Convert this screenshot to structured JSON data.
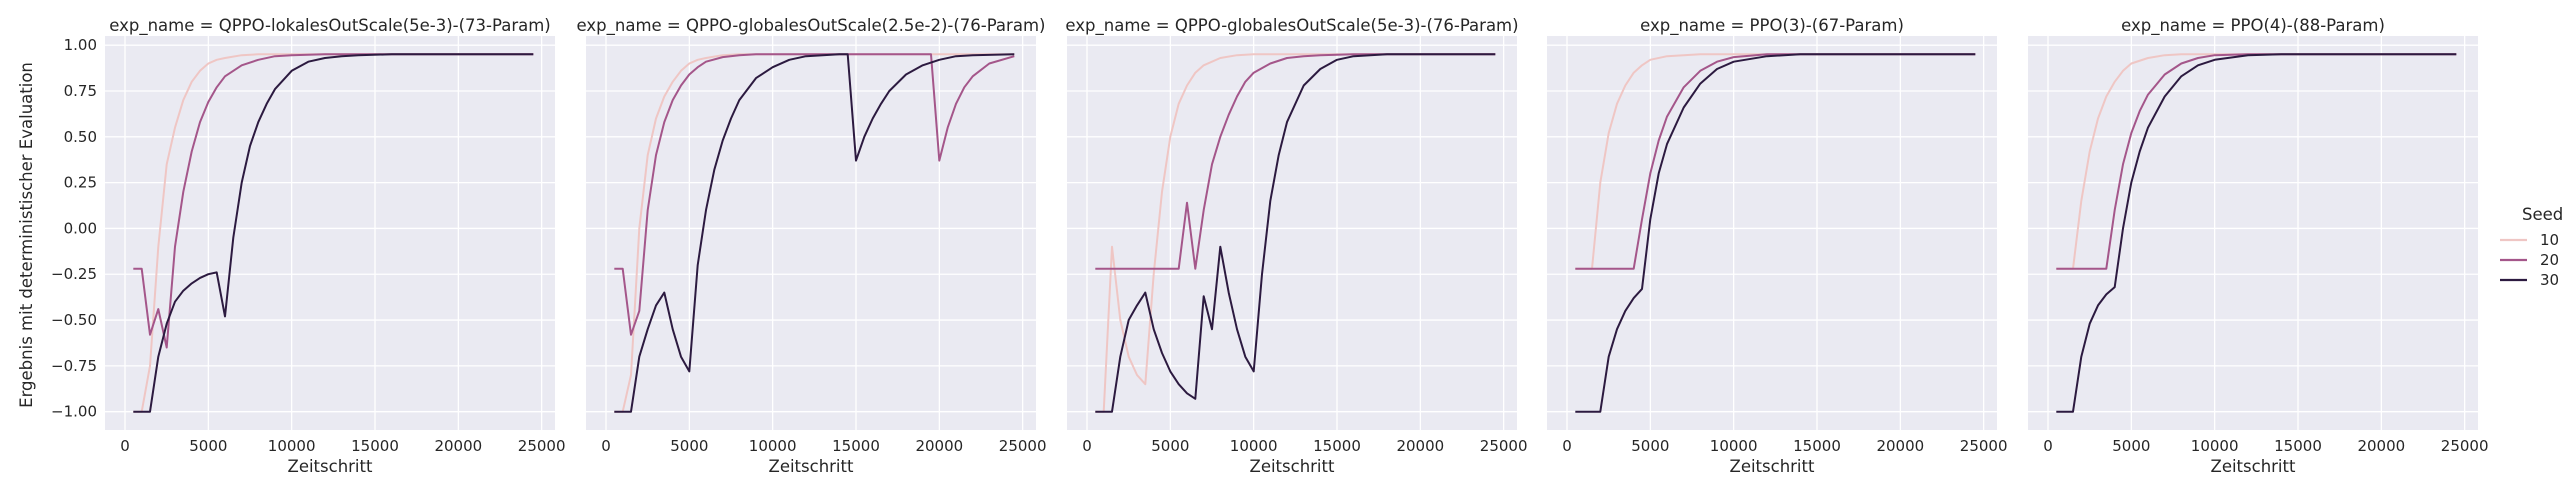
{
  "chart_data": {
    "type": "line",
    "figure": {
      "ylabel": "Ergebnis mit deterministischer Evaluation",
      "xlim": [
        -1200,
        25800
      ],
      "ylim": [
        -1.1,
        1.05
      ],
      "xticks": [
        0,
        5000,
        10000,
        15000,
        20000,
        25000
      ],
      "yticks": [
        -1.0,
        -0.75,
        -0.5,
        -0.25,
        0.0,
        0.25,
        0.5,
        0.75,
        1.0
      ],
      "ytick_labels": [
        "−1.00",
        "−0.75",
        "−0.50",
        "−0.25",
        "0.00",
        "0.25",
        "0.50",
        "0.75",
        "1.00"
      ],
      "grid": true,
      "background": "#eaeaf2",
      "grid_color": "#ffffff"
    },
    "legend": {
      "title": "Seed",
      "placement": "right",
      "entries": [
        {
          "label": "10",
          "color": "#efc6c4"
        },
        {
          "label": "20",
          "color": "#a4568a"
        },
        {
          "label": "30",
          "color": "#2c1a40"
        }
      ]
    },
    "panels": [
      {
        "title": "exp_name = QPPO-lokalesOutScale(5e-3)-(73-Param)",
        "xlabel": "Zeitschritt",
        "series": [
          {
            "name": "10",
            "color": "#efc6c4",
            "x": [
              500,
              1000,
              1500,
              2000,
              2500,
              3000,
              3500,
              4000,
              4500,
              5000,
              5500,
              6000,
              7000,
              8000,
              9000,
              10000,
              12000,
              14000,
              16000,
              18000,
              20000,
              22000,
              24500
            ],
            "y": [
              -1.0,
              -1.0,
              -0.75,
              -0.1,
              0.35,
              0.55,
              0.7,
              0.8,
              0.86,
              0.9,
              0.92,
              0.93,
              0.945,
              0.95,
              0.95,
              0.95,
              0.95,
              0.95,
              0.95,
              0.95,
              0.95,
              0.95,
              0.95
            ]
          },
          {
            "name": "20",
            "color": "#a4568a",
            "x": [
              500,
              1000,
              1500,
              2000,
              2500,
              3000,
              3500,
              4000,
              4500,
              5000,
              5500,
              6000,
              7000,
              8000,
              9000,
              10000,
              12000,
              14000,
              16000,
              18000,
              20000,
              22000,
              24500
            ],
            "y": [
              -0.22,
              -0.22,
              -0.58,
              -0.44,
              -0.65,
              -0.1,
              0.2,
              0.42,
              0.58,
              0.69,
              0.77,
              0.83,
              0.89,
              0.92,
              0.94,
              0.945,
              0.95,
              0.95,
              0.95,
              0.95,
              0.95,
              0.95,
              0.95
            ]
          },
          {
            "name": "30",
            "color": "#2c1a40",
            "x": [
              500,
              1000,
              1500,
              2000,
              2500,
              3000,
              3500,
              4000,
              4500,
              5000,
              5500,
              6000,
              6500,
              7000,
              7500,
              8000,
              8500,
              9000,
              10000,
              11000,
              12000,
              13000,
              14000,
              16000,
              18000,
              20000,
              22000,
              24500
            ],
            "y": [
              -1.0,
              -1.0,
              -1.0,
              -0.7,
              -0.52,
              -0.4,
              -0.34,
              -0.3,
              -0.27,
              -0.25,
              -0.24,
              -0.48,
              -0.05,
              0.25,
              0.45,
              0.58,
              0.68,
              0.76,
              0.86,
              0.91,
              0.93,
              0.94,
              0.945,
              0.95,
              0.95,
              0.95,
              0.95,
              0.95
            ]
          }
        ]
      },
      {
        "title": "exp_name = QPPO-globalesOutScale(2.5e-2)-(76-Param)",
        "xlabel": "Zeitschritt",
        "series": [
          {
            "name": "10",
            "color": "#efc6c4",
            "x": [
              500,
              1000,
              1500,
              2000,
              2500,
              3000,
              3500,
              4000,
              4500,
              5000,
              5500,
              6000,
              7000,
              8000,
              9000,
              10000,
              12000,
              14000,
              16000,
              18000,
              20000,
              22000,
              24500
            ],
            "y": [
              -1.0,
              -1.0,
              -0.8,
              0.0,
              0.4,
              0.6,
              0.72,
              0.8,
              0.86,
              0.9,
              0.92,
              0.93,
              0.945,
              0.95,
              0.95,
              0.95,
              0.95,
              0.95,
              0.95,
              0.95,
              0.95,
              0.95,
              0.95
            ]
          },
          {
            "name": "20",
            "color": "#a4568a",
            "x": [
              500,
              1000,
              1500,
              2000,
              2500,
              3000,
              3500,
              4000,
              4500,
              5000,
              5500,
              6000,
              7000,
              8000,
              9000,
              10000,
              12000,
              14000,
              16000,
              18000,
              19500,
              20000,
              20500,
              21000,
              21500,
              22000,
              23000,
              24500
            ],
            "y": [
              -0.22,
              -0.22,
              -0.58,
              -0.45,
              0.1,
              0.4,
              0.58,
              0.7,
              0.78,
              0.84,
              0.88,
              0.91,
              0.935,
              0.945,
              0.95,
              0.95,
              0.95,
              0.95,
              0.95,
              0.95,
              0.95,
              0.37,
              0.55,
              0.68,
              0.77,
              0.83,
              0.9,
              0.94
            ]
          },
          {
            "name": "30",
            "color": "#2c1a40",
            "x": [
              500,
              1000,
              1500,
              2000,
              2500,
              3000,
              3500,
              4000,
              4500,
              5000,
              5500,
              6000,
              6500,
              7000,
              7500,
              8000,
              9000,
              10000,
              11000,
              12000,
              13000,
              14000,
              14500,
              15000,
              15500,
              16000,
              16500,
              17000,
              18000,
              19000,
              20000,
              21000,
              22000,
              24500
            ],
            "y": [
              -1.0,
              -1.0,
              -1.0,
              -0.7,
              -0.55,
              -0.42,
              -0.35,
              -0.55,
              -0.7,
              -0.78,
              -0.2,
              0.1,
              0.32,
              0.48,
              0.6,
              0.7,
              0.82,
              0.88,
              0.92,
              0.94,
              0.945,
              0.95,
              0.95,
              0.37,
              0.5,
              0.6,
              0.68,
              0.75,
              0.84,
              0.89,
              0.92,
              0.94,
              0.945,
              0.95
            ]
          }
        ]
      },
      {
        "title": "exp_name = QPPO-globalesOutScale(5e-3)-(76-Param)",
        "xlabel": "Zeitschritt",
        "series": [
          {
            "name": "10",
            "color": "#efc6c4",
            "x": [
              500,
              1000,
              1500,
              2000,
              2500,
              3000,
              3500,
              4000,
              4500,
              5000,
              5500,
              6000,
              6500,
              7000,
              8000,
              9000,
              10000,
              12000,
              14000,
              16000,
              18000,
              20000,
              22000,
              24500
            ],
            "y": [
              -1.0,
              -1.0,
              -0.1,
              -0.5,
              -0.7,
              -0.8,
              -0.85,
              -0.25,
              0.2,
              0.5,
              0.68,
              0.78,
              0.85,
              0.89,
              0.93,
              0.945,
              0.95,
              0.95,
              0.95,
              0.95,
              0.95,
              0.95,
              0.95,
              0.95
            ]
          },
          {
            "name": "20",
            "color": "#a4568a",
            "x": [
              500,
              1000,
              1500,
              2000,
              2500,
              3000,
              3500,
              4000,
              4500,
              5000,
              5500,
              6000,
              6500,
              7000,
              7500,
              8000,
              8500,
              9000,
              9500,
              10000,
              11000,
              12000,
              13000,
              14000,
              16000,
              18000,
              20000,
              22000,
              24500
            ],
            "y": [
              -0.22,
              -0.22,
              -0.22,
              -0.22,
              -0.22,
              -0.22,
              -0.22,
              -0.22,
              -0.22,
              -0.22,
              -0.22,
              0.14,
              -0.22,
              0.1,
              0.35,
              0.5,
              0.62,
              0.72,
              0.8,
              0.85,
              0.9,
              0.93,
              0.94,
              0.945,
              0.95,
              0.95,
              0.95,
              0.95,
              0.95
            ]
          },
          {
            "name": "30",
            "color": "#2c1a40",
            "x": [
              500,
              1000,
              1500,
              2000,
              2500,
              3000,
              3500,
              4000,
              4500,
              5000,
              5500,
              6000,
              6500,
              7000,
              7500,
              8000,
              8500,
              9000,
              9500,
              10000,
              10500,
              11000,
              11500,
              12000,
              13000,
              14000,
              15000,
              16000,
              18000,
              20000,
              22000,
              24500
            ],
            "y": [
              -1.0,
              -1.0,
              -1.0,
              -0.7,
              -0.5,
              -0.42,
              -0.35,
              -0.55,
              -0.68,
              -0.78,
              -0.85,
              -0.9,
              -0.93,
              -0.37,
              -0.55,
              -0.1,
              -0.35,
              -0.55,
              -0.7,
              -0.78,
              -0.25,
              0.15,
              0.4,
              0.58,
              0.78,
              0.87,
              0.92,
              0.94,
              0.95,
              0.95,
              0.95,
              0.95
            ]
          }
        ]
      },
      {
        "title": "exp_name = PPO(3)-(67-Param)",
        "xlabel": "Zeitschritt",
        "series": [
          {
            "name": "10",
            "color": "#efc6c4",
            "x": [
              500,
              1000,
              1500,
              2000,
              2500,
              3000,
              3500,
              4000,
              4500,
              5000,
              6000,
              7000,
              8000,
              9000,
              10000,
              12000,
              14000,
              16000,
              18000,
              20000,
              22000,
              24500
            ],
            "y": [
              -0.22,
              -0.22,
              -0.22,
              0.25,
              0.52,
              0.68,
              0.78,
              0.85,
              0.89,
              0.92,
              0.94,
              0.945,
              0.95,
              0.95,
              0.95,
              0.95,
              0.95,
              0.95,
              0.95,
              0.95,
              0.95,
              0.95
            ]
          },
          {
            "name": "20",
            "color": "#a4568a",
            "x": [
              500,
              1000,
              1500,
              2000,
              2500,
              3000,
              3500,
              4000,
              4500,
              5000,
              5500,
              6000,
              7000,
              8000,
              9000,
              10000,
              12000,
              14000,
              16000,
              18000,
              20000,
              22000,
              24500
            ],
            "y": [
              -0.22,
              -0.22,
              -0.22,
              -0.22,
              -0.22,
              -0.22,
              -0.22,
              -0.22,
              0.05,
              0.3,
              0.48,
              0.61,
              0.77,
              0.86,
              0.91,
              0.935,
              0.95,
              0.95,
              0.95,
              0.95,
              0.95,
              0.95,
              0.95
            ]
          },
          {
            "name": "30",
            "color": "#2c1a40",
            "x": [
              500,
              1000,
              1500,
              2000,
              2500,
              3000,
              3500,
              4000,
              4500,
              5000,
              5500,
              6000,
              7000,
              8000,
              9000,
              10000,
              12000,
              14000,
              16000,
              18000,
              20000,
              22000,
              24500
            ],
            "y": [
              -1.0,
              -1.0,
              -1.0,
              -1.0,
              -0.7,
              -0.55,
              -0.45,
              -0.38,
              -0.33,
              0.05,
              0.3,
              0.46,
              0.66,
              0.79,
              0.87,
              0.91,
              0.94,
              0.95,
              0.95,
              0.95,
              0.95,
              0.95,
              0.95
            ]
          }
        ]
      },
      {
        "title": "exp_name = PPO(4)-(88-Param)",
        "xlabel": "Zeitschritt",
        "series": [
          {
            "name": "10",
            "color": "#efc6c4",
            "x": [
              500,
              1000,
              1500,
              2000,
              2500,
              3000,
              3500,
              4000,
              4500,
              5000,
              6000,
              7000,
              8000,
              9000,
              10000,
              12000,
              14000,
              16000,
              18000,
              20000,
              22000,
              24500
            ],
            "y": [
              -0.22,
              -0.22,
              -0.22,
              0.15,
              0.42,
              0.6,
              0.72,
              0.8,
              0.86,
              0.9,
              0.93,
              0.945,
              0.95,
              0.95,
              0.95,
              0.95,
              0.95,
              0.95,
              0.95,
              0.95,
              0.95,
              0.95
            ]
          },
          {
            "name": "20",
            "color": "#a4568a",
            "x": [
              500,
              1000,
              1500,
              2000,
              2500,
              3000,
              3500,
              4000,
              4500,
              5000,
              5500,
              6000,
              7000,
              8000,
              9000,
              10000,
              12000,
              14000,
              16000,
              18000,
              20000,
              22000,
              24500
            ],
            "y": [
              -0.22,
              -0.22,
              -0.22,
              -0.22,
              -0.22,
              -0.22,
              -0.22,
              0.1,
              0.35,
              0.52,
              0.64,
              0.73,
              0.84,
              0.9,
              0.93,
              0.945,
              0.95,
              0.95,
              0.95,
              0.95,
              0.95,
              0.95,
              0.95
            ]
          },
          {
            "name": "30",
            "color": "#2c1a40",
            "x": [
              500,
              1000,
              1500,
              2000,
              2500,
              3000,
              3500,
              4000,
              4500,
              5000,
              5500,
              6000,
              7000,
              8000,
              9000,
              10000,
              12000,
              14000,
              16000,
              18000,
              20000,
              22000,
              24500
            ],
            "y": [
              -1.0,
              -1.0,
              -1.0,
              -0.7,
              -0.52,
              -0.42,
              -0.36,
              -0.32,
              0.0,
              0.25,
              0.42,
              0.55,
              0.72,
              0.83,
              0.89,
              0.92,
              0.945,
              0.95,
              0.95,
              0.95,
              0.95,
              0.95,
              0.95
            ]
          }
        ]
      }
    ]
  }
}
